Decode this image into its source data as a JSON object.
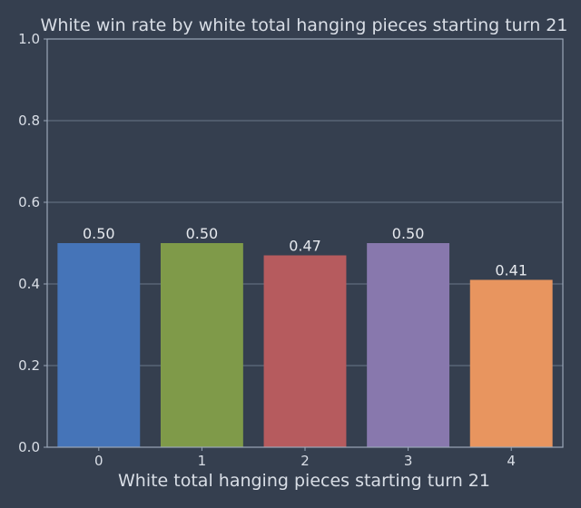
{
  "chart_data": {
    "type": "bar",
    "title": "White win rate by white total hanging pieces starting turn 21",
    "xlabel": "White total hanging pieces starting turn 21",
    "ylabel": "",
    "categories": [
      "0",
      "1",
      "2",
      "3",
      "4"
    ],
    "values": [
      0.5,
      0.5,
      0.47,
      0.5,
      0.41
    ],
    "data_labels": [
      "0.50",
      "0.50",
      "0.47",
      "0.50",
      "0.41"
    ],
    "ylim": [
      0,
      1.0
    ],
    "yticks": [
      "0.0",
      "0.2",
      "0.4",
      "0.6",
      "0.8",
      "1.0"
    ],
    "grid": "horizontal",
    "colors": [
      "#4574b8",
      "#7f9a49",
      "#b65b5e",
      "#8878ad",
      "#e8955f"
    ]
  }
}
